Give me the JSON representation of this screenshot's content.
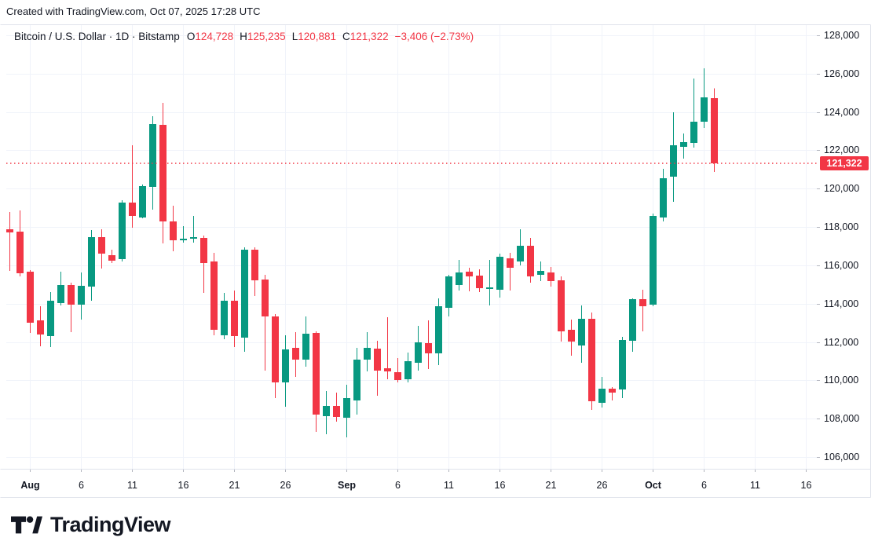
{
  "attribution": "Created with TradingView.com, Oct 07, 2025 17:28 UTC",
  "legend": {
    "title": "Bitcoin / U.S. Dollar · 1D · Bitstamp",
    "ohlc": [
      {
        "key": "O",
        "value": "124,728"
      },
      {
        "key": "H",
        "value": "125,235"
      },
      {
        "key": "L",
        "value": "120,881"
      },
      {
        "key": "C",
        "value": "121,322"
      }
    ],
    "change": "−3,406 (−2.73%)"
  },
  "price_label": "121,322",
  "logo_text": "TradingView",
  "colors": {
    "up": "#089981",
    "down": "#f23645",
    "grid": "#f0f3fa",
    "border": "#e0e3eb",
    "tick": "#b2b5be",
    "text": "#131722",
    "price_line": "#f23645",
    "price_label_bg": "#f23645"
  },
  "chart_data": {
    "type": "candlestick",
    "title": "Bitcoin / U.S. Dollar · 1D · Bitstamp",
    "symbol": "BTC/USD",
    "interval": "1D",
    "exchange": "Bitstamp",
    "last_price": 121322,
    "y_axis": {
      "min": 106000,
      "max": 128000,
      "step": 2000,
      "labels": [
        {
          "value": 128000,
          "text": "128,000"
        },
        {
          "value": 126000,
          "text": "126,000"
        },
        {
          "value": 124000,
          "text": "124,000"
        },
        {
          "value": 122000,
          "text": "122,000"
        },
        {
          "value": 120000,
          "text": "120,000"
        },
        {
          "value": 118000,
          "text": "118,000"
        },
        {
          "value": 116000,
          "text": "116,000"
        },
        {
          "value": 114000,
          "text": "114,000"
        },
        {
          "value": 112000,
          "text": "112,000"
        },
        {
          "value": 110000,
          "text": "110,000"
        },
        {
          "value": 108000,
          "text": "108,000"
        },
        {
          "value": 106000,
          "text": "106,000"
        }
      ]
    },
    "x_axis_labels": [
      {
        "label": "Aug",
        "index": 2,
        "bold": true
      },
      {
        "label": "6",
        "index": 7,
        "bold": false
      },
      {
        "label": "11",
        "index": 12,
        "bold": false
      },
      {
        "label": "16",
        "index": 17,
        "bold": false
      },
      {
        "label": "21",
        "index": 22,
        "bold": false
      },
      {
        "label": "26",
        "index": 27,
        "bold": false
      },
      {
        "label": "Sep",
        "index": 33,
        "bold": true
      },
      {
        "label": "6",
        "index": 38,
        "bold": false
      },
      {
        "label": "11",
        "index": 43,
        "bold": false
      },
      {
        "label": "16",
        "index": 48,
        "bold": false
      },
      {
        "label": "21",
        "index": 53,
        "bold": false
      },
      {
        "label": "26",
        "index": 58,
        "bold": false
      },
      {
        "label": "Oct",
        "index": 63,
        "bold": true
      },
      {
        "label": "6",
        "index": 68,
        "bold": false
      },
      {
        "label": "11",
        "index": 73,
        "bold": false
      },
      {
        "label": "16",
        "index": 78,
        "bold": false
      }
    ],
    "columns": [
      "date",
      "open",
      "high",
      "low",
      "close"
    ],
    "candles": [
      [
        "Jul 30",
        117880,
        118780,
        115710,
        117720
      ],
      [
        "Jul 31",
        117760,
        118860,
        115420,
        115590
      ],
      [
        "Aug 1",
        115670,
        115750,
        112470,
        113010
      ],
      [
        "Aug 2",
        113130,
        113870,
        111780,
        112390
      ],
      [
        "Aug 3",
        112310,
        114600,
        111740,
        114150
      ],
      [
        "Aug 4",
        114030,
        115670,
        113900,
        114970
      ],
      [
        "Aug 5",
        114970,
        115090,
        112510,
        113950
      ],
      [
        "Aug 6",
        113950,
        115630,
        113170,
        114930
      ],
      [
        "Aug 7",
        114890,
        117840,
        114150,
        117470
      ],
      [
        "Aug 8",
        117470,
        117880,
        115830,
        116610
      ],
      [
        "Aug 9",
        116530,
        116820,
        116120,
        116240
      ],
      [
        "Aug 10",
        116320,
        119400,
        116200,
        119270
      ],
      [
        "Aug 11",
        119270,
        122260,
        117960,
        118580
      ],
      [
        "Aug 12",
        118500,
        120220,
        118450,
        120130
      ],
      [
        "Aug 13",
        120090,
        123780,
        118900,
        123370
      ],
      [
        "Aug 14",
        123330,
        124480,
        117140,
        118290
      ],
      [
        "Aug 15",
        118290,
        119100,
        116730,
        117310
      ],
      [
        "Aug 16",
        117330,
        118040,
        117180,
        117390
      ],
      [
        "Aug 17",
        117400,
        118580,
        117180,
        117470
      ],
      [
        "Aug 18",
        117430,
        117550,
        114560,
        116120
      ],
      [
        "Aug 19",
        116200,
        116650,
        112350,
        112640
      ],
      [
        "Aug 20",
        112350,
        114560,
        112150,
        114150
      ],
      [
        "Aug 21",
        114150,
        114690,
        111740,
        112310
      ],
      [
        "Aug 22",
        112230,
        116940,
        111490,
        116820
      ],
      [
        "Aug 23",
        116820,
        116940,
        114400,
        115220
      ],
      [
        "Aug 24",
        115260,
        115500,
        110510,
        113330
      ],
      [
        "Aug 25",
        113330,
        113460,
        109070,
        109890
      ],
      [
        "Aug 26",
        109890,
        112350,
        108620,
        111610
      ],
      [
        "Aug 27",
        111690,
        112510,
        110180,
        111080
      ],
      [
        "Aug 28",
        111080,
        113330,
        110710,
        112430
      ],
      [
        "Aug 29",
        112470,
        112560,
        107310,
        108210
      ],
      [
        "Aug 30",
        108130,
        109440,
        107190,
        108660
      ],
      [
        "Aug 31",
        108660,
        109360,
        107840,
        108090
      ],
      [
        "Sep 1",
        108050,
        109770,
        107020,
        109070
      ],
      [
        "Sep 2",
        108950,
        111690,
        108210,
        111080
      ],
      [
        "Sep 3",
        111080,
        112510,
        110470,
        111690
      ],
      [
        "Sep 4",
        111650,
        112060,
        109200,
        110510
      ],
      [
        "Sep 5",
        110630,
        113290,
        110060,
        110470
      ],
      [
        "Sep 6",
        110420,
        111160,
        109890,
        110010
      ],
      [
        "Sep 7",
        110060,
        111450,
        109890,
        111000
      ],
      [
        "Sep 8",
        110920,
        112840,
        110510,
        111980
      ],
      [
        "Sep 9",
        111940,
        113130,
        110590,
        111410
      ],
      [
        "Sep 10",
        111410,
        114280,
        110790,
        113870
      ],
      [
        "Sep 11",
        113780,
        115500,
        113330,
        115420
      ],
      [
        "Sep 12",
        114970,
        116280,
        114690,
        115630
      ],
      [
        "Sep 13",
        115670,
        115870,
        114640,
        115420
      ],
      [
        "Sep 14",
        115460,
        115790,
        114600,
        114810
      ],
      [
        "Sep 15",
        114770,
        116280,
        113910,
        114850
      ],
      [
        "Sep 16",
        114730,
        116610,
        114320,
        116450
      ],
      [
        "Sep 17",
        116360,
        116650,
        114690,
        115870
      ],
      [
        "Sep 18",
        116200,
        117880,
        116000,
        117020
      ],
      [
        "Sep 19",
        117020,
        117430,
        115090,
        115420
      ],
      [
        "Sep 20",
        115500,
        116200,
        115180,
        115710
      ],
      [
        "Sep 21",
        115630,
        115910,
        114890,
        115180
      ],
      [
        "Sep 22",
        115220,
        115420,
        112020,
        112560
      ],
      [
        "Sep 23",
        112640,
        113170,
        111280,
        112020
      ],
      [
        "Sep 24",
        111820,
        113910,
        110920,
        113210
      ],
      [
        "Sep 25",
        113210,
        113540,
        108460,
        108910
      ],
      [
        "Sep 26",
        108820,
        110180,
        108580,
        109560
      ],
      [
        "Sep 27",
        109560,
        109640,
        108950,
        109360
      ],
      [
        "Sep 28",
        109520,
        112270,
        109070,
        112100
      ],
      [
        "Sep 29",
        112060,
        114280,
        111490,
        114230
      ],
      [
        "Sep 30",
        114230,
        114730,
        112560,
        113870
      ],
      [
        "Oct 1",
        113950,
        118700,
        113870,
        118580
      ],
      [
        "Oct 2",
        118500,
        121040,
        118290,
        120540
      ],
      [
        "Oct 3",
        120630,
        123990,
        119310,
        122260
      ],
      [
        "Oct 4",
        122180,
        122880,
        121570,
        122430
      ],
      [
        "Oct 5",
        122390,
        125750,
        122140,
        123490
      ],
      [
        "Oct 6",
        123490,
        126280,
        123170,
        124760
      ],
      [
        "Oct 7",
        124728,
        125235,
        120881,
        121322
      ]
    ]
  }
}
